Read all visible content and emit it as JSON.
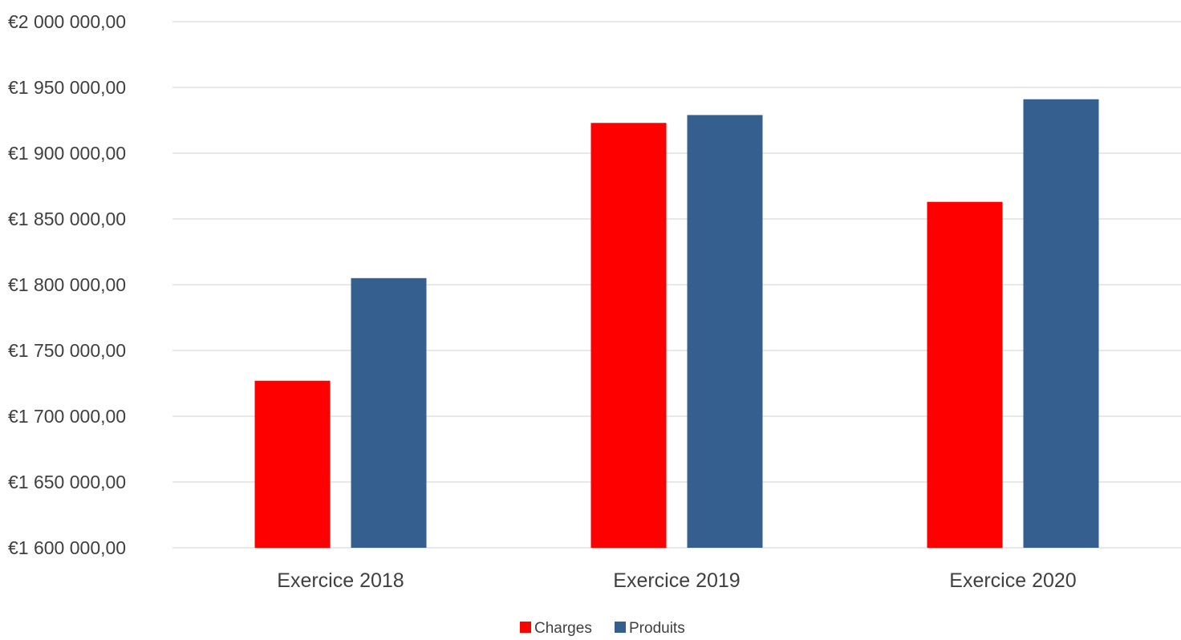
{
  "chart_data": {
    "type": "bar",
    "categories": [
      "Exercice 2018",
      "Exercice 2019",
      "Exercice 2020"
    ],
    "series": [
      {
        "name": "Charges",
        "color": "#ff0000",
        "values": [
          1727000,
          1923000,
          1863000
        ]
      },
      {
        "name": "Produits",
        "color": "#355f8f",
        "values": [
          1805000,
          1929000,
          1941000
        ]
      }
    ],
    "ylim": [
      1600000,
      2000000
    ],
    "y_ticks": [
      {
        "value": 2000000,
        "label": "€2 000 000,00"
      },
      {
        "value": 1950000,
        "label": "€1 950 000,00"
      },
      {
        "value": 1900000,
        "label": "€1 900 000,00"
      },
      {
        "value": 1850000,
        "label": "€1 850 000,00"
      },
      {
        "value": 1800000,
        "label": "€1 800 000,00"
      },
      {
        "value": 1750000,
        "label": "€1 750 000,00"
      },
      {
        "value": 1700000,
        "label": "€1 700 000,00"
      },
      {
        "value": 1650000,
        "label": "€1 650 000,00"
      },
      {
        "value": 1600000,
        "label": "€1 600 000,00"
      }
    ],
    "title": "",
    "xlabel": "",
    "ylabel": "",
    "grid": true,
    "legend_position": "bottom"
  }
}
